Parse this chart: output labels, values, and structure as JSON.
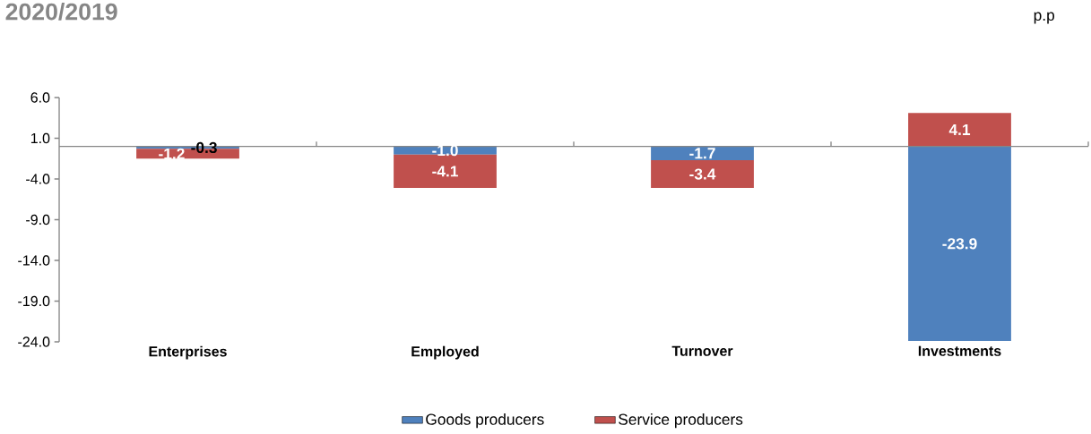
{
  "chart_data": {
    "type": "bar",
    "stacked": true,
    "title": "2020/2019",
    "annotations": [
      "p.p"
    ],
    "categories": [
      "Enterprises",
      "Employed",
      "Turnover",
      "Investments"
    ],
    "series": [
      {
        "name": "Goods producers",
        "color": "#4f81bd",
        "values": [
          -0.3,
          -1.0,
          -1.7,
          -23.9
        ],
        "value_labels": [
          "-0.3",
          "-1.0",
          "-1.7",
          "-23.9"
        ]
      },
      {
        "name": "Service producers",
        "color": "#c0504d",
        "values": [
          -1.2,
          -4.1,
          -3.4,
          4.1
        ],
        "value_labels": [
          "-1.2",
          "-4.1",
          "-3.4",
          "4.1"
        ]
      }
    ],
    "ylim": [
      -24,
      6
    ],
    "yticks": [
      {
        "value": -24,
        "label": "-24.0"
      },
      {
        "value": -19,
        "label": "-19.0"
      },
      {
        "value": -14,
        "label": "-14.0"
      },
      {
        "value": -9,
        "label": "-9.0"
      },
      {
        "value": -4,
        "label": "-4.0"
      },
      {
        "value": 1,
        "label": "1.0"
      },
      {
        "value": 6,
        "label": "6.0"
      }
    ],
    "legend": "bottom"
  }
}
